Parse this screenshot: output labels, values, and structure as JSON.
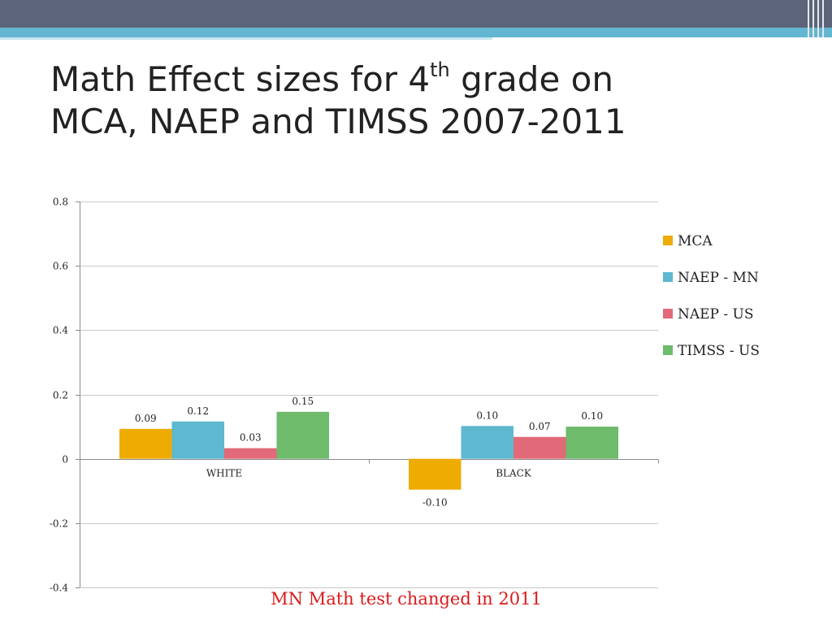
{
  "slide": {
    "title_line1_pre": "Math Effect sizes for 4",
    "title_sup": "th",
    "title_line1_post": " grade on",
    "title_line2": "MCA, NAEP and TIMSS 2007-2011",
    "footnote": "MN Math test changed in 2011"
  },
  "chart_data": {
    "type": "bar",
    "title": "",
    "xlabel": "",
    "ylabel": "",
    "categories": [
      "WHITE",
      "BLACK"
    ],
    "ylim": [
      -0.4,
      0.8
    ],
    "yticks": [
      -0.4,
      -0.2,
      0,
      0.2,
      0.4,
      0.6,
      0.8
    ],
    "ytick_labels": [
      "-0.4",
      "-0.2",
      "0",
      "0.2",
      "0.4",
      "0.6",
      "0.8"
    ],
    "grid": true,
    "legend_position": "right",
    "series": [
      {
        "name": "MCA",
        "color": "#eeab02",
        "values": [
          0.093,
          -0.096
        ],
        "labels": [
          "0.09",
          "-0.10"
        ]
      },
      {
        "name": "NAEP - MN",
        "color": "#5db8d0",
        "values": [
          0.116,
          0.102
        ],
        "labels": [
          "0.12",
          "0.10"
        ]
      },
      {
        "name": "NAEP - US",
        "color": "#e26977",
        "values": [
          0.033,
          0.068
        ],
        "labels": [
          "0.03",
          "0.07"
        ]
      },
      {
        "name": "TIMSS - US",
        "color": "#6dbb6b",
        "values": [
          0.146,
          0.1
        ],
        "labels": [
          "0.15",
          "0.10"
        ]
      }
    ]
  }
}
